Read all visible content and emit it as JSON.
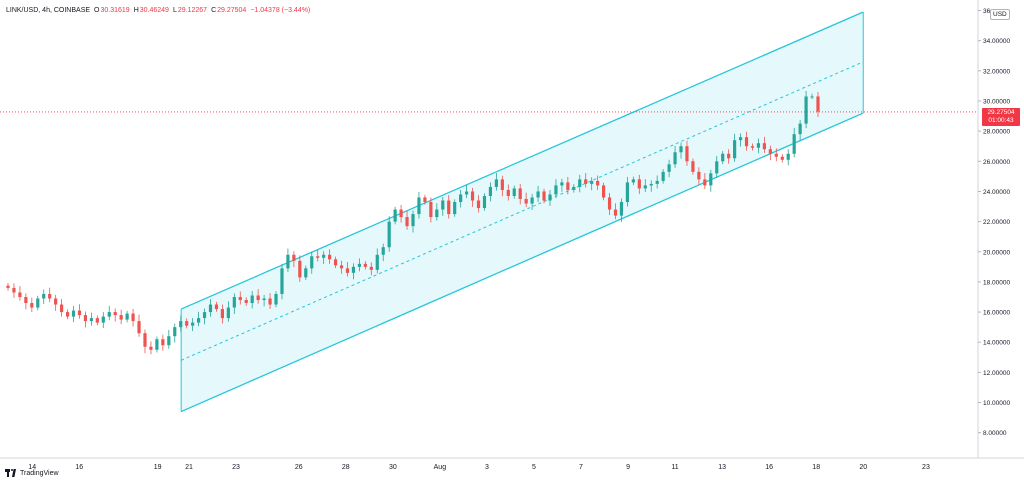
{
  "header": {
    "symbol": "LINK/USD, 4h, COINBASE",
    "open_label": "O",
    "open": "30.31619",
    "high_label": "H",
    "high": "30.46249",
    "low_label": "L",
    "low": "29.12267",
    "close_label": "C",
    "close": "29.27504",
    "change": "−1.04378 (−3.44%)"
  },
  "currency_label": "USD",
  "price_tag": {
    "price": "29.27504",
    "countdown": "01:00:43"
  },
  "logo_text": "TradingView",
  "colors": {
    "up": "#26a69a",
    "down": "#ef5350",
    "channel_line": "#26c6da",
    "channel_fill": "#e0f7fa",
    "last_price": "#f23645",
    "grid": "#f0f3fa"
  },
  "chart_data": {
    "type": "candlestick",
    "symbol": "LINK/USD",
    "interval": "4h",
    "exchange": "COINBASE",
    "y_axis": {
      "ylim": [
        7,
        36.5
      ],
      "tick_labels": [
        "8.00000",
        "10.00000",
        "12.00000",
        "14.00000",
        "16.00000",
        "18.00000",
        "20.00000",
        "22.00000",
        "24.00000",
        "26.00000",
        "28.00000",
        "30.00000",
        "32.00000",
        "34.00000",
        "36"
      ],
      "tick_values": [
        8,
        10,
        12,
        14,
        16,
        18,
        20,
        22,
        24,
        26,
        28,
        30,
        32,
        34,
        36
      ]
    },
    "x_axis": {
      "tick_labels": [
        "14",
        "16",
        "19",
        "21",
        "23",
        "26",
        "28",
        "30",
        "Aug",
        "3",
        "5",
        "7",
        "9",
        "11",
        "13",
        "16",
        "18",
        "20",
        "23"
      ],
      "tick_positions": [
        -1,
        -0.7,
        -0.2,
        0,
        0.3,
        0.7,
        1,
        1.3,
        1.6,
        1.9,
        2.2,
        2.5,
        2.8,
        3.1,
        3.4,
        3.7,
        4.0,
        4.3,
        4.7
      ],
      "tick_units": "relative-week-index"
    },
    "last_price": 29.27504,
    "closes": [
      17.6,
      17.3,
      17.0,
      16.6,
      16.3,
      16.9,
      17.2,
      16.9,
      16.5,
      16.0,
      15.7,
      16.1,
      15.8,
      15.4,
      15.6,
      15.3,
      15.7,
      16.0,
      15.8,
      15.5,
      15.9,
      15.4,
      14.6,
      13.7,
      13.5,
      14.2,
      13.8,
      14.4,
      15.0,
      15.4,
      15.1,
      15.3,
      15.6,
      16.0,
      16.5,
      16.2,
      15.6,
      16.3,
      17.0,
      16.8,
      16.6,
      17.1,
      16.8,
      16.9,
      16.5,
      17.2,
      18.9,
      19.8,
      19.4,
      18.3,
      18.9,
      19.7,
      19.6,
      19.8,
      19.5,
      19.1,
      18.9,
      18.6,
      19.0,
      19.2,
      19.0,
      18.8,
      19.8,
      20.3,
      22.0,
      22.8,
      22.3,
      21.7,
      22.5,
      23.6,
      23.3,
      22.3,
      22.8,
      23.4,
      22.5,
      23.3,
      23.8,
      24.0,
      23.4,
      22.9,
      23.7,
      24.3,
      24.8,
      24.1,
      23.7,
      24.2,
      23.5,
      23.2,
      23.6,
      24.0,
      23.4,
      23.8,
      24.4,
      24.6,
      24.1,
      24.3,
      24.8,
      24.5,
      24.7,
      24.4,
      23.6,
      22.8,
      22.4,
      23.3,
      24.6,
      24.8,
      24.2,
      24.4,
      24.5,
      24.7,
      25.3,
      25.8,
      26.6,
      27.0,
      26.0,
      25.3,
      24.8,
      24.4,
      25.2,
      26.0,
      26.5,
      26.2,
      27.4,
      27.6,
      27.0,
      26.9,
      27.2,
      26.8,
      26.5,
      26.3,
      26.1,
      26.5,
      27.8,
      28.5,
      30.3,
      30.3,
      29.3
    ]
  },
  "channel": {
    "upper": [
      [
        -0.05,
        16.2
      ],
      [
        4.3,
        35.9
      ]
    ],
    "middle": [
      [
        -0.05,
        12.8
      ],
      [
        4.3,
        32.6
      ]
    ],
    "lower": [
      [
        -0.05,
        9.4
      ],
      [
        4.3,
        29.2
      ]
    ]
  }
}
